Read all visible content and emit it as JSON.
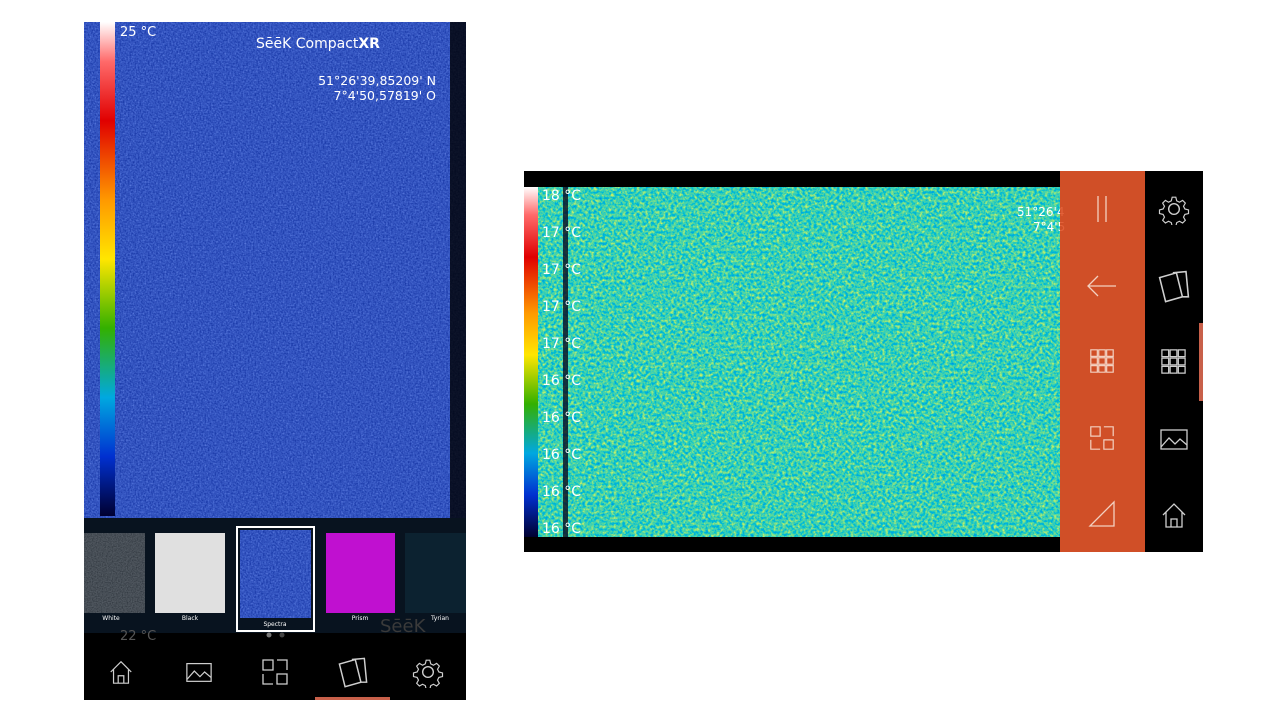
{
  "left_screen": {
    "max_temp": "25 °C",
    "brand": "SēēK Compact",
    "brand_model": "XR",
    "latitude": "51°26'39,85209' N",
    "longitude": "7°4'50,57819' O",
    "palettes": [
      "White",
      "Black",
      "Spectra",
      "Prism",
      "Tyrian"
    ],
    "min_temp": "22 °C",
    "watermark": "SēēK"
  },
  "right_screen": {
    "scale_labels": [
      "18 °C",
      "17 °C",
      "17 °C",
      "17 °C",
      "17 °C",
      "16 °C",
      "16 °C",
      "16 °C",
      "16 °C",
      "16 °C"
    ],
    "latitude": "51°26'4",
    "longitude": "7°4'5"
  }
}
